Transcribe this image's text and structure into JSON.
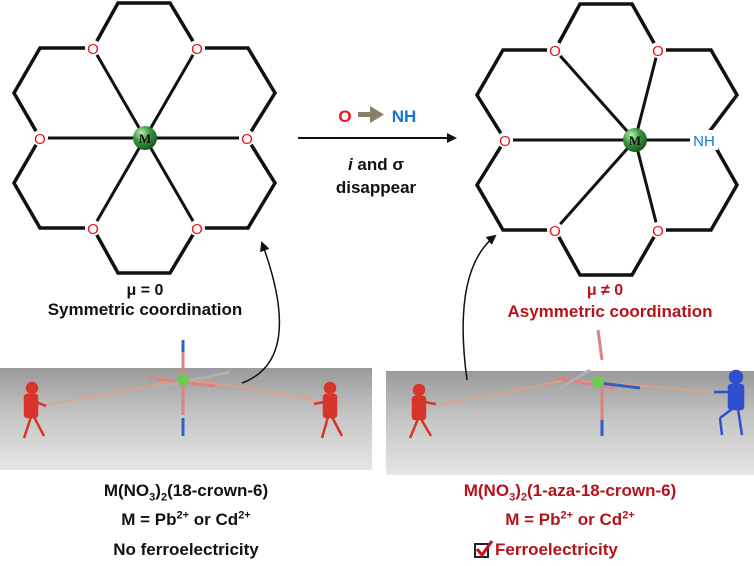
{
  "colors": {
    "oxygen": "#e8131b",
    "nitrogen": "#1673d9",
    "metal": "#2e8b2e",
    "accent_red": "#b5121b",
    "text": "#111111",
    "reaction_arrow": "#8c7f6a"
  },
  "left_structure": {
    "metal_label": "M",
    "donor_labels": [
      "O",
      "O",
      "O",
      "O",
      "O",
      "O"
    ],
    "dipole": "μ = 0",
    "caption": "Symmetric coordination"
  },
  "right_structure": {
    "metal_label": "M",
    "donor_labels": [
      "O",
      "O",
      "O",
      "O",
      "O"
    ],
    "nh_label": "NH",
    "dipole": "μ ≠ 0",
    "caption": "Asymmetric coordination"
  },
  "reaction": {
    "from": "O",
    "to": "NH",
    "condition_italic": "i",
    "condition_mid": " and ",
    "condition_sigma": "σ",
    "condition_line2": "disappear"
  },
  "left_compound": {
    "formula_parts": [
      "M(NO",
      "3",
      ")",
      "2",
      "(18-crown-6)"
    ],
    "metal_line": {
      "prefix": "M = Pb",
      "charge1": "2+",
      "mid": " or Cd",
      "charge2": "2+"
    },
    "property": "No ferroelectricity"
  },
  "right_compound": {
    "formula_parts": [
      "M(NO",
      "3",
      ")",
      "2",
      "(1-aza-18-crown-6)"
    ],
    "metal_line": {
      "prefix": "M = Pb",
      "charge1": "2+",
      "mid": " or Cd",
      "charge2": "2+"
    },
    "property": "Ferroelectricity",
    "property_checked": true
  }
}
